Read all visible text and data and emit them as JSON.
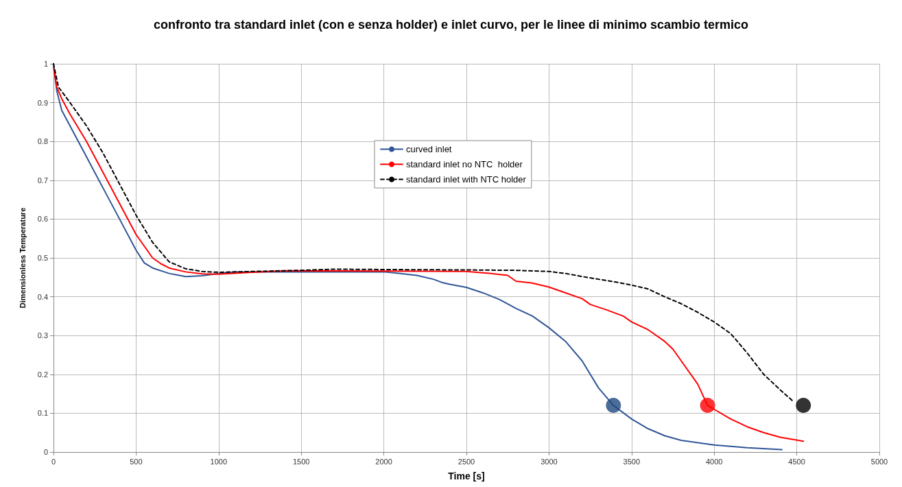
{
  "chart_data": {
    "type": "line",
    "title": "confronto tra standard inlet (con e senza holder) e inlet curvo, per le linee di minimo scambio termico",
    "xlabel": "Time [s]",
    "ylabel": "Dimensionless Temperature",
    "xlim": [
      0,
      5000
    ],
    "xticks": [
      0,
      500,
      1000,
      1500,
      2000,
      2500,
      3000,
      3500,
      4000,
      4500,
      5000
    ],
    "ylim": [
      0,
      1
    ],
    "yticks": [
      0,
      0.1,
      0.2,
      0.3,
      0.4,
      0.5,
      0.6,
      0.7,
      0.8,
      0.9,
      1
    ],
    "grid": true,
    "legend": "top center",
    "marker": "none",
    "series": [
      {
        "name": "curved inlet",
        "color": "#2f5597",
        "line_style": "solid",
        "x": [
          0,
          20,
          50,
          100,
          200,
          300,
          400,
          500,
          550,
          600,
          700,
          800,
          900,
          1000,
          1100,
          1500,
          2000,
          2100,
          2200,
          2300,
          2350,
          2400,
          2500,
          2600,
          2700,
          2800,
          2900,
          3000,
          3100,
          3200,
          3300,
          3390,
          3500,
          3600,
          3700,
          3800,
          4000,
          4200,
          4410
        ],
        "values": [
          1,
          0.93,
          0.88,
          0.84,
          0.76,
          0.68,
          0.6,
          0.52,
          0.487,
          0.474,
          0.46,
          0.452,
          0.454,
          0.46,
          0.464,
          0.464,
          0.464,
          0.46,
          0.455,
          0.445,
          0.437,
          0.432,
          0.424,
          0.41,
          0.393,
          0.37,
          0.35,
          0.32,
          0.285,
          0.235,
          0.165,
          0.12,
          0.085,
          0.06,
          0.042,
          0.03,
          0.018,
          0.011,
          0.006
        ]
      },
      {
        "name": "standard inlet no NTC  holder",
        "color": "#ff0000",
        "line_style": "solid",
        "x": [
          0,
          20,
          50,
          100,
          200,
          300,
          400,
          500,
          600,
          650,
          700,
          800,
          900,
          1000,
          1200,
          1400,
          2000,
          2500,
          2650,
          2750,
          2800,
          2900,
          3000,
          3100,
          3200,
          3250,
          3350,
          3450,
          3500,
          3600,
          3700,
          3750,
          3800,
          3900,
          3960,
          4000,
          4100,
          4200,
          4300,
          4400,
          4540
        ],
        "values": [
          0.99,
          0.94,
          0.91,
          0.87,
          0.8,
          0.72,
          0.64,
          0.56,
          0.5,
          0.485,
          0.474,
          0.464,
          0.459,
          0.458,
          0.463,
          0.467,
          0.466,
          0.465,
          0.46,
          0.455,
          0.44,
          0.435,
          0.425,
          0.41,
          0.395,
          0.38,
          0.366,
          0.35,
          0.335,
          0.315,
          0.285,
          0.265,
          0.235,
          0.175,
          0.12,
          0.11,
          0.085,
          0.065,
          0.05,
          0.038,
          0.028
        ]
      },
      {
        "name": "standard inlet with NTC holder",
        "color": "#000000",
        "line_style": "dashed",
        "x": [
          0,
          30,
          100,
          200,
          300,
          400,
          500,
          600,
          700,
          800,
          900,
          1000,
          1500,
          1700,
          2000,
          2500,
          2800,
          3000,
          3100,
          3200,
          3300,
          3400,
          3500,
          3600,
          3700,
          3800,
          3900,
          4000,
          4100,
          4200,
          4300,
          4400,
          4480
        ],
        "values": [
          1,
          0.94,
          0.9,
          0.84,
          0.77,
          0.69,
          0.61,
          0.54,
          0.49,
          0.472,
          0.465,
          0.463,
          0.468,
          0.471,
          0.47,
          0.469,
          0.468,
          0.465,
          0.46,
          0.452,
          0.445,
          0.438,
          0.43,
          0.42,
          0.4,
          0.382,
          0.36,
          0.335,
          0.305,
          0.255,
          0.2,
          0.16,
          0.13
        ]
      },
      {
        "type": "scatter",
        "marker": "circle",
        "color": "#1f497d",
        "x": [
          3390
        ],
        "values": [
          0.12
        ]
      },
      {
        "type": "scatter",
        "marker": "circle",
        "color": "#ff0000",
        "x": [
          3960
        ],
        "values": [
          0.12
        ]
      },
      {
        "type": "scatter",
        "marker": "circle",
        "color": "#000000",
        "x": [
          4540
        ],
        "values": [
          0.12
        ]
      }
    ]
  }
}
